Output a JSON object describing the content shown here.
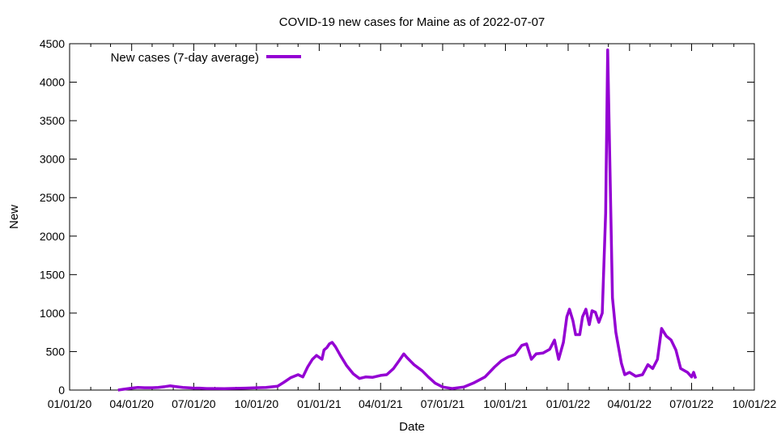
{
  "chart_data": {
    "type": "line",
    "title": "COVID-19 new cases for Maine as of 2022-07-07",
    "xlabel": "Date",
    "ylabel": "New",
    "x_ticks": [
      "01/01/20",
      "04/01/20",
      "07/01/20",
      "10/01/20",
      "01/01/21",
      "04/01/21",
      "07/01/21",
      "10/01/21",
      "01/01/22",
      "04/01/22",
      "07/01/22",
      "10/01/22"
    ],
    "y_ticks": [
      "0",
      "500",
      "1000",
      "1500",
      "2000",
      "2500",
      "3000",
      "3500",
      "4000",
      "4500"
    ],
    "xlim": [
      "2020-01-01",
      "2022-10-01"
    ],
    "ylim": [
      0,
      4500
    ],
    "grid": false,
    "legend_position": "top-left",
    "series": [
      {
        "name": "New cases (7-day average)",
        "color": "#9400d3",
        "points": [
          [
            "2020-03-12",
            0
          ],
          [
            "2020-03-20",
            10
          ],
          [
            "2020-04-01",
            25
          ],
          [
            "2020-04-10",
            35
          ],
          [
            "2020-04-20",
            30
          ],
          [
            "2020-05-01",
            30
          ],
          [
            "2020-05-10",
            35
          ],
          [
            "2020-05-20",
            45
          ],
          [
            "2020-05-27",
            55
          ],
          [
            "2020-06-05",
            45
          ],
          [
            "2020-06-15",
            35
          ],
          [
            "2020-06-25",
            28
          ],
          [
            "2020-07-01",
            25
          ],
          [
            "2020-07-10",
            25
          ],
          [
            "2020-07-20",
            20
          ],
          [
            "2020-08-01",
            20
          ],
          [
            "2020-08-15",
            18
          ],
          [
            "2020-09-01",
            22
          ],
          [
            "2020-09-15",
            25
          ],
          [
            "2020-10-01",
            30
          ],
          [
            "2020-10-15",
            35
          ],
          [
            "2020-11-01",
            50
          ],
          [
            "2020-11-10",
            100
          ],
          [
            "2020-11-20",
            160
          ],
          [
            "2020-12-01",
            200
          ],
          [
            "2020-12-08",
            170
          ],
          [
            "2020-12-15",
            300
          ],
          [
            "2020-12-22",
            400
          ],
          [
            "2020-12-28",
            450
          ],
          [
            "2021-01-05",
            400
          ],
          [
            "2021-01-08",
            520
          ],
          [
            "2021-01-12",
            550
          ],
          [
            "2021-01-16",
            600
          ],
          [
            "2021-01-20",
            620
          ],
          [
            "2021-01-25",
            560
          ],
          [
            "2021-02-01",
            450
          ],
          [
            "2021-02-10",
            320
          ],
          [
            "2021-02-20",
            210
          ],
          [
            "2021-03-01",
            150
          ],
          [
            "2021-03-10",
            170
          ],
          [
            "2021-03-20",
            165
          ],
          [
            "2021-04-01",
            190
          ],
          [
            "2021-04-10",
            200
          ],
          [
            "2021-04-20",
            280
          ],
          [
            "2021-04-28",
            380
          ],
          [
            "2021-05-05",
            470
          ],
          [
            "2021-05-10",
            420
          ],
          [
            "2021-05-20",
            330
          ],
          [
            "2021-06-01",
            250
          ],
          [
            "2021-06-10",
            170
          ],
          [
            "2021-06-20",
            90
          ],
          [
            "2021-07-01",
            40
          ],
          [
            "2021-07-15",
            20
          ],
          [
            "2021-08-01",
            40
          ],
          [
            "2021-08-15",
            90
          ],
          [
            "2021-09-01",
            170
          ],
          [
            "2021-09-15",
            300
          ],
          [
            "2021-09-25",
            380
          ],
          [
            "2021-10-05",
            430
          ],
          [
            "2021-10-15",
            460
          ],
          [
            "2021-10-25",
            580
          ],
          [
            "2021-11-01",
            600
          ],
          [
            "2021-11-08",
            400
          ],
          [
            "2021-11-15",
            470
          ],
          [
            "2021-11-25",
            480
          ],
          [
            "2021-12-05",
            530
          ],
          [
            "2021-12-12",
            650
          ],
          [
            "2021-12-18",
            400
          ],
          [
            "2021-12-25",
            620
          ],
          [
            "2021-12-30",
            950
          ],
          [
            "2022-01-03",
            1050
          ],
          [
            "2022-01-08",
            900
          ],
          [
            "2022-01-12",
            720
          ],
          [
            "2022-01-18",
            720
          ],
          [
            "2022-01-22",
            950
          ],
          [
            "2022-01-27",
            1050
          ],
          [
            "2022-02-01",
            850
          ],
          [
            "2022-02-05",
            1030
          ],
          [
            "2022-02-10",
            1010
          ],
          [
            "2022-02-15",
            880
          ],
          [
            "2022-02-20",
            1000
          ],
          [
            "2022-02-25",
            2300
          ],
          [
            "2022-02-28",
            4420
          ],
          [
            "2022-03-03",
            3000
          ],
          [
            "2022-03-07",
            1200
          ],
          [
            "2022-03-12",
            750
          ],
          [
            "2022-03-20",
            350
          ],
          [
            "2022-03-25",
            200
          ],
          [
            "2022-04-01",
            230
          ],
          [
            "2022-04-10",
            180
          ],
          [
            "2022-04-20",
            200
          ],
          [
            "2022-04-28",
            330
          ],
          [
            "2022-05-05",
            280
          ],
          [
            "2022-05-12",
            400
          ],
          [
            "2022-05-18",
            800
          ],
          [
            "2022-05-25",
            700
          ],
          [
            "2022-06-01",
            650
          ],
          [
            "2022-06-08",
            520
          ],
          [
            "2022-06-15",
            280
          ],
          [
            "2022-06-25",
            230
          ],
          [
            "2022-07-01",
            170
          ],
          [
            "2022-07-04",
            230
          ],
          [
            "2022-07-07",
            150
          ]
        ]
      }
    ]
  }
}
